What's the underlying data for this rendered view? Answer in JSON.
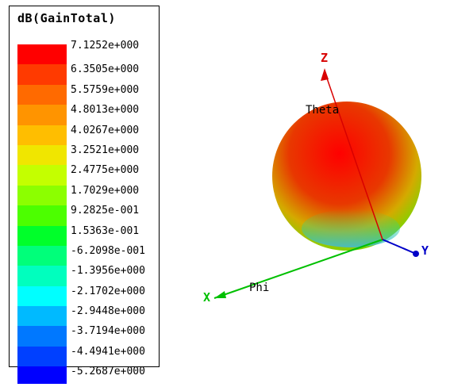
{
  "legend": {
    "title": "dB(GainTotal)",
    "entries": [
      {
        "label": "7.1252e+000",
        "color": "#ff0000"
      },
      {
        "label": "6.3505e+000",
        "color": "#ff3a00"
      },
      {
        "label": "5.5759e+000",
        "color": "#ff6a00"
      },
      {
        "label": "4.8013e+000",
        "color": "#ff9400"
      },
      {
        "label": "4.0267e+000",
        "color": "#ffbe00"
      },
      {
        "label": "3.2521e+000",
        "color": "#f0e600"
      },
      {
        "label": "2.4775e+000",
        "color": "#c4ff00"
      },
      {
        "label": "1.7029e+000",
        "color": "#8cff00"
      },
      {
        "label": "9.2825e-001",
        "color": "#4cff00"
      },
      {
        "label": "1.5363e-001",
        "color": "#00ff2a"
      },
      {
        "label": "-6.2098e-001",
        "color": "#00ff7a"
      },
      {
        "label": "-1.3956e+000",
        "color": "#00ffbe"
      },
      {
        "label": "-2.1702e+000",
        "color": "#00ffff"
      },
      {
        "label": "-2.9448e+000",
        "color": "#00baff"
      },
      {
        "label": "-3.7194e+000",
        "color": "#0078ff"
      },
      {
        "label": "-4.4941e+000",
        "color": "#0040ff"
      },
      {
        "label": "-5.2687e+000",
        "color": "#0000ff"
      }
    ]
  },
  "axes": {
    "z_label": "Z",
    "y_label": "Y",
    "x_label": "X",
    "theta_label": "Theta",
    "phi_label": "Phi",
    "z_color": "#d80000",
    "y_color": "#0000c8",
    "x_color": "#00c000"
  }
}
